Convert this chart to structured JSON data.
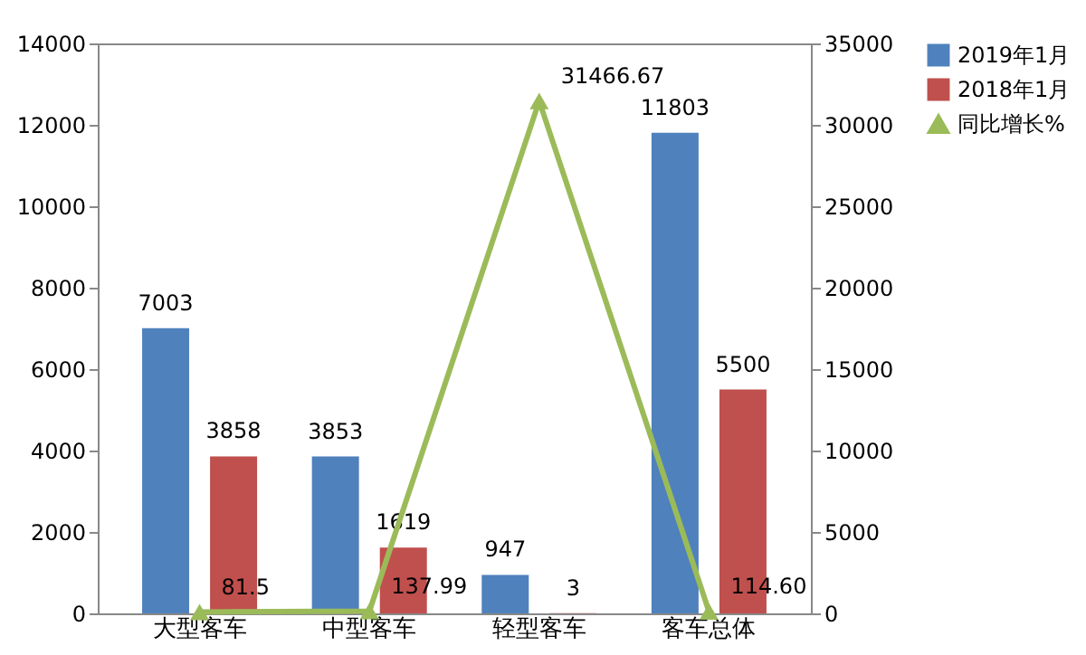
{
  "chart_data": {
    "type": "bar",
    "categories": [
      "大型客车",
      "中型客车",
      "轻型客车",
      "客车总体"
    ],
    "series": [
      {
        "name": "2019年1月",
        "color": "#4f81bd",
        "values": [
          7003,
          3853,
          947,
          11803
        ]
      },
      {
        "name": "2018年1月",
        "color": "#c0504d",
        "values": [
          3858,
          1619,
          3,
          5500
        ]
      },
      {
        "name": "同比增长%",
        "type": "line",
        "axis": "y2",
        "color": "#9bbb59",
        "marker": "triangle",
        "values": [
          81.5,
          137.99,
          31466.67,
          114.6
        ],
        "value_labels": [
          "81.5",
          "137.99",
          "31466.67",
          "114.60"
        ]
      }
    ],
    "ylim": [
      0,
      14000
    ],
    "yticks": [
      0,
      2000,
      4000,
      6000,
      8000,
      10000,
      12000,
      14000
    ],
    "y2lim": [
      0,
      35000
    ],
    "y2ticks": [
      0,
      5000,
      10000,
      15000,
      20000,
      25000,
      30000,
      35000
    ],
    "data_labels": true,
    "legend": "right",
    "grid": false
  }
}
